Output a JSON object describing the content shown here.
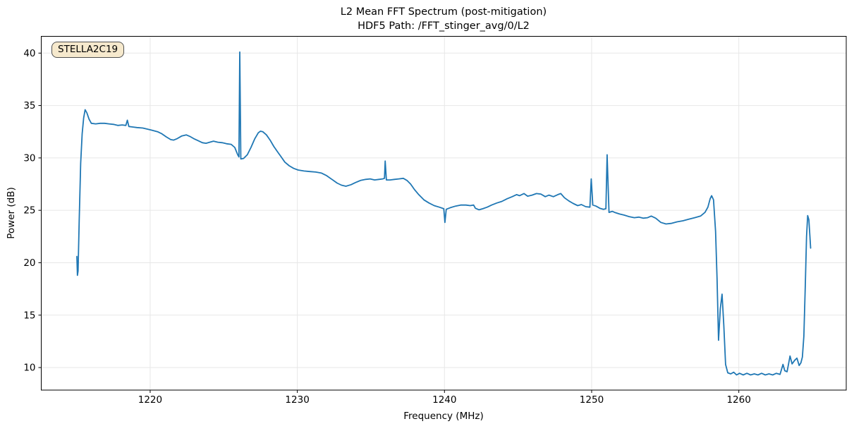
{
  "chart_data": {
    "type": "line",
    "title_line1": "L2 Mean FFT Spectrum (post-mitigation)",
    "title_line2": "HDF5 Path: /FFT_stinger_avg/0/L2",
    "annotation_label": "STELLA2C19",
    "xlabel": "Frequency (MHz)",
    "ylabel": "Power (dB)",
    "xlim": [
      1212.6,
      1267.3
    ],
    "ylim": [
      7.85,
      41.6
    ],
    "xticks": [
      1220,
      1230,
      1240,
      1250,
      1260
    ],
    "yticks": [
      10,
      15,
      20,
      25,
      30,
      35,
      40
    ],
    "grid": true,
    "legend": "none",
    "line_color": "#1f77b4",
    "grid_color": "#e7e7e7",
    "axis_color": "#000000",
    "annotation_bg": "#f6e9cd",
    "series": [
      {
        "name": "L2 mean FFT spectrum",
        "points": [
          [
            1215.02,
            20.6
          ],
          [
            1215.06,
            18.8
          ],
          [
            1215.1,
            19.2
          ],
          [
            1215.18,
            24.0
          ],
          [
            1215.28,
            29.5
          ],
          [
            1215.38,
            32.3
          ],
          [
            1215.48,
            33.8
          ],
          [
            1215.58,
            34.6
          ],
          [
            1215.7,
            34.3
          ],
          [
            1215.85,
            33.7
          ],
          [
            1216.0,
            33.3
          ],
          [
            1216.3,
            33.25
          ],
          [
            1216.6,
            33.3
          ],
          [
            1216.9,
            33.3
          ],
          [
            1217.2,
            33.25
          ],
          [
            1217.5,
            33.2
          ],
          [
            1217.8,
            33.1
          ],
          [
            1218.1,
            33.15
          ],
          [
            1218.35,
            33.1
          ],
          [
            1218.45,
            33.6
          ],
          [
            1218.55,
            33.0
          ],
          [
            1218.8,
            32.95
          ],
          [
            1219.1,
            32.9
          ],
          [
            1219.5,
            32.85
          ],
          [
            1219.8,
            32.75
          ],
          [
            1220.1,
            32.65
          ],
          [
            1220.5,
            32.5
          ],
          [
            1220.8,
            32.3
          ],
          [
            1221.1,
            32.0
          ],
          [
            1221.4,
            31.75
          ],
          [
            1221.6,
            31.7
          ],
          [
            1221.85,
            31.85
          ],
          [
            1222.15,
            32.1
          ],
          [
            1222.45,
            32.2
          ],
          [
            1222.7,
            32.05
          ],
          [
            1222.95,
            31.85
          ],
          [
            1223.25,
            31.65
          ],
          [
            1223.55,
            31.45
          ],
          [
            1223.8,
            31.4
          ],
          [
            1224.05,
            31.5
          ],
          [
            1224.3,
            31.6
          ],
          [
            1224.6,
            31.5
          ],
          [
            1224.9,
            31.45
          ],
          [
            1225.2,
            31.35
          ],
          [
            1225.5,
            31.3
          ],
          [
            1225.75,
            31.0
          ],
          [
            1225.95,
            30.3
          ],
          [
            1226.03,
            30.1
          ],
          [
            1226.09,
            40.1
          ],
          [
            1226.16,
            29.9
          ],
          [
            1226.35,
            29.95
          ],
          [
            1226.6,
            30.3
          ],
          [
            1226.85,
            31.0
          ],
          [
            1227.1,
            31.8
          ],
          [
            1227.35,
            32.4
          ],
          [
            1227.5,
            32.55
          ],
          [
            1227.65,
            32.5
          ],
          [
            1227.9,
            32.2
          ],
          [
            1228.15,
            31.7
          ],
          [
            1228.4,
            31.1
          ],
          [
            1228.65,
            30.6
          ],
          [
            1228.9,
            30.1
          ],
          [
            1229.15,
            29.6
          ],
          [
            1229.45,
            29.25
          ],
          [
            1229.75,
            29.0
          ],
          [
            1230.05,
            28.85
          ],
          [
            1230.45,
            28.75
          ],
          [
            1230.85,
            28.7
          ],
          [
            1231.25,
            28.65
          ],
          [
            1231.65,
            28.55
          ],
          [
            1232.0,
            28.3
          ],
          [
            1232.35,
            27.95
          ],
          [
            1232.7,
            27.6
          ],
          [
            1233.0,
            27.4
          ],
          [
            1233.3,
            27.3
          ],
          [
            1233.65,
            27.45
          ],
          [
            1233.95,
            27.65
          ],
          [
            1234.3,
            27.85
          ],
          [
            1234.65,
            27.95
          ],
          [
            1234.95,
            28.0
          ],
          [
            1235.25,
            27.9
          ],
          [
            1235.55,
            27.95
          ],
          [
            1235.8,
            28.0
          ],
          [
            1235.92,
            28.05
          ],
          [
            1235.97,
            29.7
          ],
          [
            1236.05,
            27.9
          ],
          [
            1236.3,
            27.9
          ],
          [
            1236.6,
            27.95
          ],
          [
            1236.9,
            28.0
          ],
          [
            1237.2,
            28.05
          ],
          [
            1237.45,
            27.85
          ],
          [
            1237.7,
            27.5
          ],
          [
            1237.95,
            27.0
          ],
          [
            1238.25,
            26.5
          ],
          [
            1238.6,
            26.0
          ],
          [
            1238.95,
            25.7
          ],
          [
            1239.3,
            25.45
          ],
          [
            1239.65,
            25.3
          ],
          [
            1239.95,
            25.15
          ],
          [
            1240.03,
            23.85
          ],
          [
            1240.12,
            25.1
          ],
          [
            1240.4,
            25.25
          ],
          [
            1240.75,
            25.4
          ],
          [
            1241.1,
            25.5
          ],
          [
            1241.45,
            25.5
          ],
          [
            1241.75,
            25.45
          ],
          [
            1241.98,
            25.5
          ],
          [
            1242.1,
            25.2
          ],
          [
            1242.35,
            25.05
          ],
          [
            1242.6,
            25.15
          ],
          [
            1242.9,
            25.3
          ],
          [
            1243.2,
            25.5
          ],
          [
            1243.55,
            25.7
          ],
          [
            1243.9,
            25.85
          ],
          [
            1244.25,
            26.1
          ],
          [
            1244.6,
            26.3
          ],
          [
            1244.9,
            26.5
          ],
          [
            1245.1,
            26.4
          ],
          [
            1245.4,
            26.6
          ],
          [
            1245.65,
            26.35
          ],
          [
            1245.95,
            26.45
          ],
          [
            1246.25,
            26.6
          ],
          [
            1246.55,
            26.55
          ],
          [
            1246.85,
            26.3
          ],
          [
            1247.1,
            26.45
          ],
          [
            1247.4,
            26.3
          ],
          [
            1247.7,
            26.5
          ],
          [
            1247.9,
            26.6
          ],
          [
            1248.15,
            26.2
          ],
          [
            1248.45,
            25.9
          ],
          [
            1248.75,
            25.65
          ],
          [
            1249.05,
            25.45
          ],
          [
            1249.3,
            25.55
          ],
          [
            1249.6,
            25.35
          ],
          [
            1249.88,
            25.3
          ],
          [
            1249.97,
            28.0
          ],
          [
            1250.08,
            25.5
          ],
          [
            1250.3,
            25.4
          ],
          [
            1250.55,
            25.2
          ],
          [
            1250.8,
            25.1
          ],
          [
            1250.97,
            25.15
          ],
          [
            1251.05,
            30.3
          ],
          [
            1251.18,
            24.8
          ],
          [
            1251.4,
            24.9
          ],
          [
            1251.6,
            24.78
          ],
          [
            1251.9,
            24.65
          ],
          [
            1252.2,
            24.55
          ],
          [
            1252.55,
            24.4
          ],
          [
            1252.9,
            24.3
          ],
          [
            1253.2,
            24.35
          ],
          [
            1253.5,
            24.25
          ],
          [
            1253.8,
            24.3
          ],
          [
            1254.05,
            24.45
          ],
          [
            1254.35,
            24.25
          ],
          [
            1254.7,
            23.85
          ],
          [
            1255.05,
            23.7
          ],
          [
            1255.4,
            23.75
          ],
          [
            1255.8,
            23.9
          ],
          [
            1256.2,
            24.0
          ],
          [
            1256.6,
            24.15
          ],
          [
            1257.0,
            24.3
          ],
          [
            1257.4,
            24.45
          ],
          [
            1257.7,
            24.8
          ],
          [
            1257.9,
            25.3
          ],
          [
            1258.05,
            26.1
          ],
          [
            1258.15,
            26.4
          ],
          [
            1258.28,
            26.0
          ],
          [
            1258.42,
            23.0
          ],
          [
            1258.52,
            18.5
          ],
          [
            1258.62,
            12.6
          ],
          [
            1258.74,
            15.6
          ],
          [
            1258.86,
            17.0
          ],
          [
            1258.98,
            14.0
          ],
          [
            1259.1,
            10.3
          ],
          [
            1259.25,
            9.5
          ],
          [
            1259.45,
            9.4
          ],
          [
            1259.65,
            9.55
          ],
          [
            1259.85,
            9.3
          ],
          [
            1260.05,
            9.45
          ],
          [
            1260.3,
            9.3
          ],
          [
            1260.55,
            9.45
          ],
          [
            1260.8,
            9.3
          ],
          [
            1261.05,
            9.4
          ],
          [
            1261.3,
            9.3
          ],
          [
            1261.55,
            9.45
          ],
          [
            1261.8,
            9.3
          ],
          [
            1262.05,
            9.4
          ],
          [
            1262.3,
            9.3
          ],
          [
            1262.55,
            9.45
          ],
          [
            1262.8,
            9.35
          ],
          [
            1263.0,
            10.3
          ],
          [
            1263.12,
            9.7
          ],
          [
            1263.28,
            9.6
          ],
          [
            1263.48,
            11.1
          ],
          [
            1263.62,
            10.35
          ],
          [
            1263.8,
            10.7
          ],
          [
            1263.95,
            10.9
          ],
          [
            1264.1,
            10.2
          ],
          [
            1264.22,
            10.45
          ],
          [
            1264.32,
            11.0
          ],
          [
            1264.42,
            13.0
          ],
          [
            1264.52,
            18.0
          ],
          [
            1264.6,
            22.5
          ],
          [
            1264.68,
            24.5
          ],
          [
            1264.76,
            24.1
          ],
          [
            1264.83,
            22.5
          ],
          [
            1264.88,
            21.4
          ]
        ]
      }
    ]
  }
}
